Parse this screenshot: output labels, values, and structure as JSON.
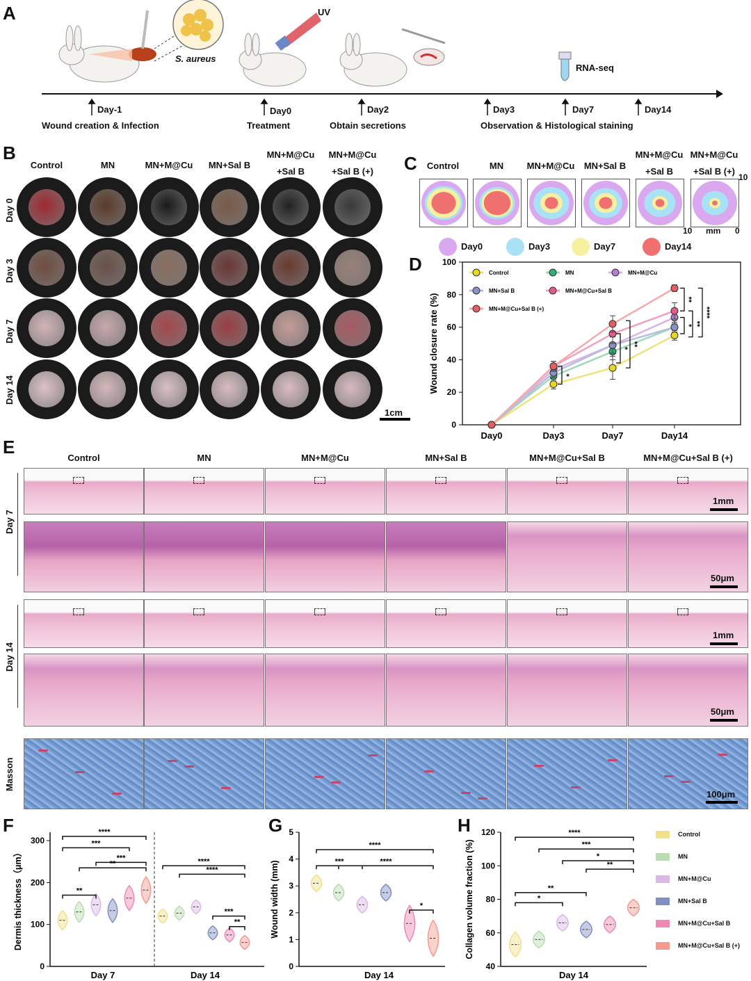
{
  "panels": {
    "A": "A",
    "B": "B",
    "C": "C",
    "D": "D",
    "E": "E",
    "F": "F",
    "G": "G",
    "H": "H"
  },
  "panel_a": {
    "bacteria_label": "S. aureus",
    "uv_label": "UV",
    "rnaseq_label": "RNA-seq",
    "timepoints": [
      "Day-1",
      "Day0",
      "Day2",
      "Day3",
      "Day7",
      "Day14"
    ],
    "captions": [
      "Wound creation & Infection",
      "Treatment",
      "Obtain secretions",
      "Observation & Histological staining"
    ]
  },
  "groups": [
    "Control",
    "MN",
    "MN+M@Cu",
    "MN+Sal B",
    "MN+M@Cu\n+Sal B",
    "MN+M@Cu\n+Sal B (+)"
  ],
  "group_heads_b": [
    [
      "Control"
    ],
    [
      "MN"
    ],
    [
      "MN+M@Cu"
    ],
    [
      "MN+Sal B"
    ],
    [
      "MN+M@Cu",
      "+Sal B"
    ],
    [
      "MN+M@Cu",
      "+Sal B (+)"
    ]
  ],
  "day_rows": [
    "Day 0",
    "Day 3",
    "Day 7",
    "Day 14"
  ],
  "scale_b": "1cm",
  "panel_c": {
    "heads": [
      [
        "Control"
      ],
      [
        "MN"
      ],
      [
        "MN+M@Cu"
      ],
      [
        "MN+Sal B"
      ],
      [
        "MN+M@Cu",
        "+Sal B"
      ],
      [
        "MN+M@Cu",
        "+Sal B (+)"
      ]
    ],
    "axis_top": "10",
    "axis_left": "10",
    "axis_unit": "mm",
    "axis_zero": "0",
    "legend": [
      {
        "label": "Day0",
        "color": "#d9a8ef"
      },
      {
        "label": "Day3",
        "color": "#a9e2f5"
      },
      {
        "label": "Day7",
        "color": "#f7f0a0"
      },
      {
        "label": "Day14",
        "color": "#f07070"
      }
    ]
  },
  "panel_e": {
    "heads": [
      "Control",
      "MN",
      "MN+M@Cu",
      "MN+Sal B",
      "MN+M@Cu+Sal B",
      "MN+M@Cu+Sal B (+)"
    ],
    "rows": [
      "Day 7",
      "Day 14",
      "Masson"
    ],
    "scales": [
      "1mm",
      "50μm",
      "1mm",
      "50μm",
      "100μm"
    ]
  },
  "legend_fgh": [
    {
      "label": "Control",
      "color": "#f2e08a"
    },
    {
      "label": "MN",
      "color": "#b9dcb0"
    },
    {
      "label": "MN+M@Cu",
      "color": "#d9b8e6"
    },
    {
      "label": "MN+Sal B",
      "color": "#7f8fc4"
    },
    {
      "label": "MN+M@Cu+Sal B",
      "color": "#ee88b4"
    },
    {
      "label": "MN+M@Cu+Sal B (+)",
      "color": "#f59a8e"
    }
  ],
  "chart_data": [
    {
      "panel": "D",
      "type": "line",
      "title": "",
      "xlabel": "",
      "ylabel": "Wound closure rate (%)",
      "categories": [
        "Day0",
        "Day3",
        "Day7",
        "Day14"
      ],
      "ylim": [
        0,
        100
      ],
      "yticks": [
        0,
        20,
        40,
        60,
        80,
        100
      ],
      "legend_position": "top-left",
      "series": [
        {
          "name": "Control",
          "color": "#eee37a",
          "marker": "#e8d920",
          "values": [
            0,
            25,
            35,
            55
          ],
          "err": [
            0,
            3,
            7,
            3
          ]
        },
        {
          "name": "MN",
          "color": "#9fd9b8",
          "marker": "#2eaf7a",
          "values": [
            0,
            30,
            45,
            60
          ],
          "err": [
            0,
            3,
            5,
            3
          ]
        },
        {
          "name": "MN+M@Cu",
          "color": "#d9b5e4",
          "marker": "#b37ccd",
          "values": [
            0,
            34,
            49,
            66
          ],
          "err": [
            0,
            3,
            5,
            4
          ]
        },
        {
          "name": "MN+Sal B",
          "color": "#b7bedf",
          "marker": "#8a93c8",
          "values": [
            0,
            32,
            49,
            60
          ],
          "err": [
            0,
            3,
            5,
            3
          ]
        },
        {
          "name": "MN+M@Cu+Sal B",
          "color": "#f0a0bf",
          "marker": "#e35d8c",
          "values": [
            0,
            36,
            56,
            70
          ],
          "err": [
            0,
            3,
            6,
            5
          ]
        },
        {
          "name": "MN+M@Cu+Sal B (+)",
          "color": "#f5a9a9",
          "marker": "#e46060",
          "values": [
            0,
            36,
            62,
            84
          ],
          "err": [
            0,
            3,
            5,
            2
          ]
        }
      ],
      "annotations": [
        "*",
        "*",
        "**",
        "**",
        "*",
        "**",
        "****"
      ]
    },
    {
      "panel": "F",
      "type": "violin",
      "ylabel": "Dermis thickness（μm）",
      "ylim": [
        0,
        320
      ],
      "yticks": [
        0,
        100,
        200,
        300
      ],
      "groups_x": [
        "Day 7",
        "Day 14"
      ],
      "series": [
        {
          "name": "Control",
          "values": [
            110,
            120
          ]
        },
        {
          "name": "MN",
          "values": [
            130,
            127
          ]
        },
        {
          "name": "MN+M@Cu",
          "values": [
            147,
            142
          ]
        },
        {
          "name": "MN+Sal B",
          "values": [
            133,
            80
          ]
        },
        {
          "name": "MN+M@Cu+Sal B",
          "values": [
            163,
            75
          ]
        },
        {
          "name": "MN+M@Cu+Sal B (+)",
          "values": [
            182,
            57
          ]
        }
      ],
      "annotations": [
        "****",
        "***",
        "***",
        "**",
        "**",
        "****",
        "****",
        "***",
        "**"
      ]
    },
    {
      "panel": "G",
      "type": "violin",
      "ylabel": "Wound width (mm)",
      "xlabel": "Day 14",
      "ylim": [
        0,
        5
      ],
      "yticks": [
        0,
        1,
        2,
        3,
        4,
        5
      ],
      "series": [
        {
          "name": "Control",
          "value": 3.1
        },
        {
          "name": "MN",
          "value": 2.75
        },
        {
          "name": "MN+M@Cu",
          "value": 2.3
        },
        {
          "name": "MN+Sal B",
          "value": 2.75
        },
        {
          "name": "MN+M@Cu+Sal B",
          "value": 1.6
        },
        {
          "name": "MN+M@Cu+Sal B (+)",
          "value": 1.05
        }
      ],
      "annotations": [
        "****",
        "***",
        "****",
        "*"
      ]
    },
    {
      "panel": "H",
      "type": "violin",
      "ylabel": "Collagen volume fraction (%)",
      "xlabel": "Day 14",
      "ylim": [
        40,
        120
      ],
      "yticks": [
        40,
        60,
        80,
        100,
        120
      ],
      "series": [
        {
          "name": "Control",
          "value": 53
        },
        {
          "name": "MN",
          "value": 56
        },
        {
          "name": "MN+M@Cu",
          "value": 66
        },
        {
          "name": "MN+Sal B",
          "value": 62
        },
        {
          "name": "MN+M@Cu+Sal B",
          "value": 65
        },
        {
          "name": "MN+M@Cu+Sal B (+)",
          "value": 75
        }
      ],
      "annotations": [
        "****",
        "***",
        "*",
        "**",
        "**",
        "*"
      ]
    }
  ]
}
